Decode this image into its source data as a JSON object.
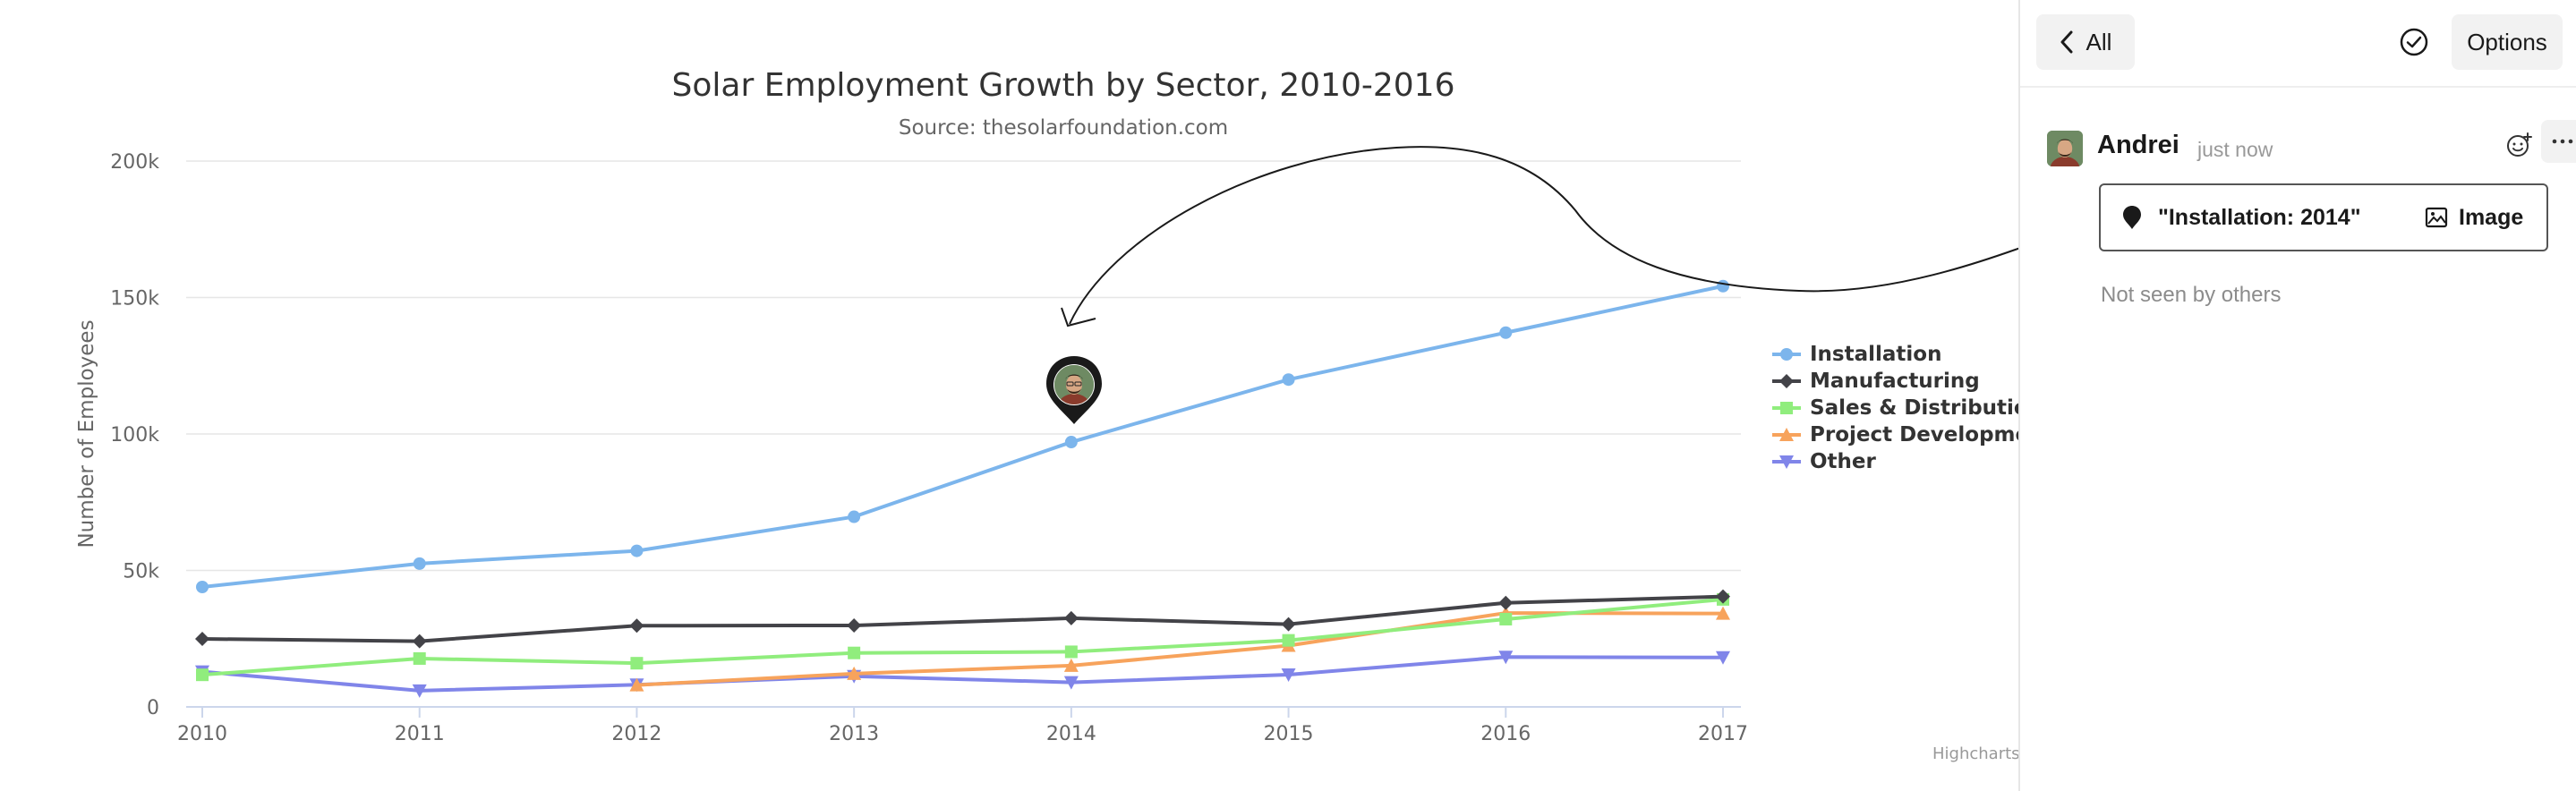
{
  "chart_data": {
    "type": "line",
    "title": "Solar Employment Growth by Sector, 2010-2016",
    "subtitle": "Source: thesolarfoundation.com",
    "xlabel": "",
    "ylabel": "Number of Employees",
    "x": [
      2010,
      2011,
      2012,
      2013,
      2014,
      2015,
      2016,
      2017
    ],
    "ylim": [
      0,
      200000
    ],
    "y_ticks": [
      "0",
      "50k",
      "100k",
      "150k",
      "200k"
    ],
    "grid": true,
    "legend_position": "right",
    "series": [
      {
        "name": "Installation",
        "color": "#7cb5ec",
        "marker": "circle",
        "values": [
          43934,
          52503,
          57177,
          69658,
          97031,
          119931,
          137133,
          154175
        ]
      },
      {
        "name": "Manufacturing",
        "color": "#434348",
        "marker": "diamond",
        "values": [
          24916,
          24064,
          29742,
          29851,
          32490,
          30282,
          38121,
          40434
        ]
      },
      {
        "name": "Sales & Distribution",
        "color": "#90ed7d",
        "marker": "square",
        "values": [
          11744,
          17722,
          16005,
          19771,
          20185,
          24377,
          32147,
          39387
        ]
      },
      {
        "name": "Project Development",
        "color": "#f7a35c",
        "marker": "triangle",
        "values": [
          null,
          null,
          7988,
          12169,
          15112,
          22452,
          34400,
          34227
        ]
      },
      {
        "name": "Other",
        "color": "#8085e9",
        "marker": "triangle-down",
        "values": [
          12908,
          5948,
          8105,
          11248,
          8989,
          11816,
          18274,
          18111
        ]
      }
    ],
    "credits": "Highcharts"
  },
  "panel": {
    "back_label": "All",
    "options_label": "Options",
    "check_icon": "check-circle-icon",
    "comment": {
      "author": "Andrei",
      "timestamp": "just now",
      "attachment_text": "\"Installation: 2014\"",
      "attachment_image_label": "Image",
      "seen_status": "Not seen by others"
    }
  }
}
